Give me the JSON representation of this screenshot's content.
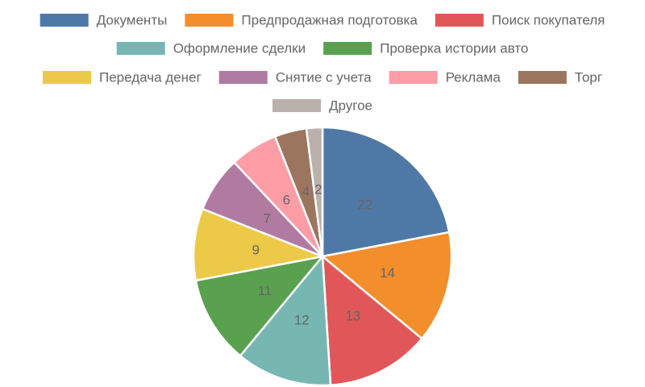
{
  "chart_data": {
    "type": "pie",
    "title": "",
    "legend_position": "top",
    "slices": [
      {
        "label": "Документы",
        "value": 22,
        "color": "#4e79a7"
      },
      {
        "label": "Предпродажная подготовка",
        "value": 14,
        "color": "#f28e2b"
      },
      {
        "label": "Поиск покупателя",
        "value": 13,
        "color": "#e15759"
      },
      {
        "label": "Оформление сделки",
        "value": 12,
        "color": "#76b7b2"
      },
      {
        "label": "Проверка истории авто",
        "value": 11,
        "color": "#59a14f"
      },
      {
        "label": "Передача денег",
        "value": 9,
        "color": "#edc948"
      },
      {
        "label": "Снятие с учета",
        "value": 7,
        "color": "#b07aa1"
      },
      {
        "label": "Реклама",
        "value": 6,
        "color": "#ff9da7"
      },
      {
        "label": "Торг",
        "value": 4,
        "color": "#9c755f"
      },
      {
        "label": "Другое",
        "value": 2,
        "color": "#bab0ac"
      }
    ]
  }
}
